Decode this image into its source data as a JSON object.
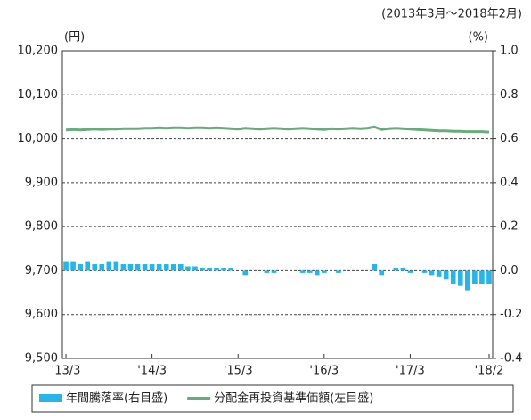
{
  "chart_data": {
    "type": "bar-line",
    "subtitle": "(2013年3月～2018年2月)",
    "y_unit": "(円)",
    "y2_unit": "(%)",
    "categories": [
      "'13/3",
      null,
      null,
      null,
      null,
      null,
      null,
      null,
      null,
      null,
      null,
      null,
      "'14/3",
      null,
      null,
      null,
      null,
      null,
      null,
      null,
      null,
      null,
      null,
      null,
      "'15/3",
      null,
      null,
      null,
      null,
      null,
      null,
      null,
      null,
      null,
      null,
      null,
      "'16/3",
      null,
      null,
      null,
      null,
      null,
      null,
      null,
      null,
      null,
      null,
      null,
      "'17/3",
      null,
      null,
      null,
      null,
      null,
      null,
      null,
      null,
      null,
      null,
      "'18/2"
    ],
    "series": [
      {
        "name": "年間騰落率(右目盛)",
        "color": "#29b4e6",
        "axis": "y2",
        "kind": "bar",
        "values": [
          0.04,
          0.04,
          0.03,
          0.04,
          0.03,
          0.03,
          0.04,
          0.04,
          0.03,
          0.03,
          0.03,
          0.03,
          0.03,
          0.03,
          0.03,
          0.03,
          0.03,
          0.02,
          0.02,
          0.01,
          0.01,
          0.01,
          0.01,
          0.01,
          0,
          -0.02,
          0,
          0,
          -0.01,
          -0.01,
          0,
          0,
          0,
          -0.01,
          -0.01,
          -0.02,
          -0.01,
          0,
          -0.01,
          0,
          0,
          0,
          0,
          0.03,
          -0.02,
          0,
          0.01,
          0.01,
          -0.01,
          0,
          -0.01,
          -0.02,
          -0.03,
          -0.04,
          -0.06,
          -0.07,
          -0.09,
          -0.06,
          -0.06,
          -0.06
        ]
      },
      {
        "name": "分配金再投資基準価額(左目盛)",
        "color": "#6aaa7c",
        "axis": "y",
        "kind": "line",
        "values": [
          10020,
          10021,
          10020,
          10021,
          10022,
          10021,
          10022,
          10022,
          10023,
          10023,
          10023,
          10024,
          10024,
          10025,
          10024,
          10025,
          10025,
          10024,
          10025,
          10025,
          10024,
          10025,
          10024,
          10023,
          10022,
          10024,
          10023,
          10022,
          10023,
          10024,
          10023,
          10022,
          10023,
          10024,
          10023,
          10022,
          10021,
          10023,
          10022,
          10023,
          10024,
          10023,
          10024,
          10027,
          10021,
          10023,
          10024,
          10023,
          10022,
          10021,
          10020,
          10019,
          10018,
          10018,
          10017,
          10017,
          10016,
          10016,
          10016,
          10015
        ]
      }
    ],
    "ylim": [
      9500,
      10200
    ],
    "yticks": [
      {
        "value": 9500,
        "label": "9,500"
      },
      {
        "value": 9600,
        "label": "9,600"
      },
      {
        "value": 9700,
        "label": "9,700"
      },
      {
        "value": 9800,
        "label": "9,800"
      },
      {
        "value": 9900,
        "label": "9,900"
      },
      {
        "value": 10000,
        "label": "10,000"
      },
      {
        "value": 10100,
        "label": "10,100"
      },
      {
        "value": 10200,
        "label": "10,200"
      }
    ],
    "y2lim": [
      -0.4,
      1
    ],
    "y2ticks": [
      -0.4,
      -0.2,
      {
        "value": 0,
        "label": "0.0"
      },
      0.2,
      0.4,
      0.6,
      0.8,
      {
        "value": 1,
        "label": "1.0"
      }
    ],
    "grid": true
  }
}
